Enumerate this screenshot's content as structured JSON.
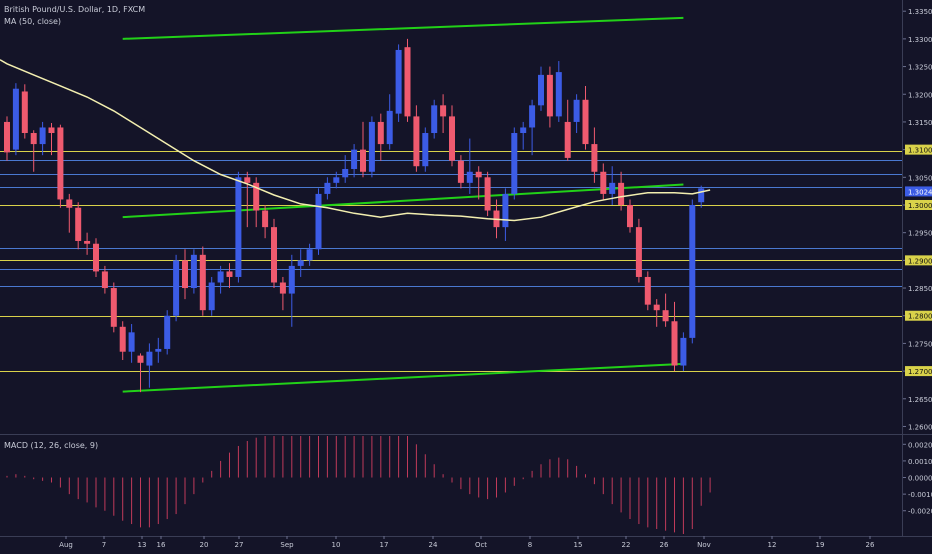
{
  "symbol_title": "British Pound/U.S. Dollar, 1D, FXCM",
  "ma_label": "MA (50, close)",
  "macd_label": "MACD (12, 26, close, 9)",
  "colors": {
    "background": "#141428",
    "bull": "#3c5ce6",
    "bear": "#ef5a6f",
    "ma": "#f3efb0",
    "trendline": "#22d118",
    "level": "#d9d24a",
    "blue_level": "#4a78d0",
    "macd_hist": "#c03a5a",
    "text": "#c9ccd8"
  },
  "chart_data": [
    {
      "type": "candlestick",
      "title": "British Pound/U.S. Dollar, 1D, FXCM",
      "x_tick_labels": [
        "Aug",
        "7",
        "13",
        "16",
        "20",
        "27",
        "Sep",
        "10",
        "17",
        "24",
        "Oct",
        "8",
        "15",
        "22",
        "26",
        "Nov",
        "12",
        "19",
        "26"
      ],
      "y_tick_labels": [
        "1.33500",
        "1.33000",
        "1.32500",
        "1.32000",
        "1.31500",
        "1.31000",
        "1.30500",
        "1.30000",
        "1.29500",
        "1.29000",
        "1.28500",
        "1.28000",
        "1.27500",
        "1.27000",
        "1.26500",
        "1.26000"
      ],
      "ylim": [
        1.259,
        1.3363
      ],
      "grid": false,
      "scale_badges": [
        "1.31000",
        "1.30000",
        "1.29000",
        "1.28000",
        "1.27000"
      ],
      "current_price_badge": "1.30245",
      "horizontal_levels": [
        {
          "value": 1.3098,
          "style": "yellow"
        },
        {
          "value": 1.3082,
          "style": "blue"
        },
        {
          "value": 1.3056,
          "style": "blue"
        },
        {
          "value": 1.3032,
          "style": "blue"
        },
        {
          "value": 1.3,
          "style": "yellow"
        },
        {
          "value": 1.2922,
          "style": "blue"
        },
        {
          "value": 1.29,
          "style": "yellow"
        },
        {
          "value": 1.2885,
          "style": "blue"
        },
        {
          "value": 1.2853,
          "style": "blue"
        },
        {
          "value": 1.28,
          "style": "yellow"
        },
        {
          "value": 1.27,
          "style": "yellow"
        }
      ],
      "trendlines": [
        {
          "from": [
            13,
            1.33
          ],
          "to": [
            76,
            1.3338
          ]
        },
        {
          "from": [
            13,
            1.2978
          ],
          "to": [
            76,
            1.3037
          ]
        },
        {
          "from": [
            13,
            1.2663
          ],
          "to": [
            76,
            1.2713
          ]
        }
      ],
      "candles": [
        {
          "o": 1.315,
          "h": 1.316,
          "l": 1.308,
          "c": 1.3095
        },
        {
          "o": 1.31,
          "h": 1.322,
          "l": 1.309,
          "c": 1.321
        },
        {
          "o": 1.3205,
          "h": 1.3218,
          "l": 1.312,
          "c": 1.313
        },
        {
          "o": 1.313,
          "h": 1.3135,
          "l": 1.306,
          "c": 1.311
        },
        {
          "o": 1.311,
          "h": 1.315,
          "l": 1.309,
          "c": 1.314
        },
        {
          "o": 1.314,
          "h": 1.3148,
          "l": 1.309,
          "c": 1.313
        },
        {
          "o": 1.314,
          "h": 1.3145,
          "l": 1.2995,
          "c": 1.301
        },
        {
          "o": 1.301,
          "h": 1.302,
          "l": 1.295,
          "c": 1.2995
        },
        {
          "o": 1.2995,
          "h": 1.3005,
          "l": 1.292,
          "c": 1.2935
        },
        {
          "o": 1.2935,
          "h": 1.295,
          "l": 1.291,
          "c": 1.293
        },
        {
          "o": 1.293,
          "h": 1.294,
          "l": 1.287,
          "c": 1.288
        },
        {
          "o": 1.288,
          "h": 1.289,
          "l": 1.284,
          "c": 1.285
        },
        {
          "o": 1.285,
          "h": 1.286,
          "l": 1.277,
          "c": 1.278
        },
        {
          "o": 1.278,
          "h": 1.279,
          "l": 1.272,
          "c": 1.2735
        },
        {
          "o": 1.2735,
          "h": 1.2785,
          "l": 1.2715,
          "c": 1.277
        },
        {
          "o": 1.2728,
          "h": 1.2732,
          "l": 1.2662,
          "c": 1.2715
        },
        {
          "o": 1.271,
          "h": 1.275,
          "l": 1.267,
          "c": 1.2735
        },
        {
          "o": 1.2735,
          "h": 1.276,
          "l": 1.2715,
          "c": 1.274
        },
        {
          "o": 1.274,
          "h": 1.281,
          "l": 1.273,
          "c": 1.28
        },
        {
          "o": 1.28,
          "h": 1.291,
          "l": 1.279,
          "c": 1.29
        },
        {
          "o": 1.29,
          "h": 1.292,
          "l": 1.283,
          "c": 1.285
        },
        {
          "o": 1.285,
          "h": 1.292,
          "l": 1.284,
          "c": 1.291
        },
        {
          "o": 1.291,
          "h": 1.2925,
          "l": 1.28,
          "c": 1.281
        },
        {
          "o": 1.281,
          "h": 1.287,
          "l": 1.28,
          "c": 1.286
        },
        {
          "o": 1.286,
          "h": 1.289,
          "l": 1.284,
          "c": 1.288
        },
        {
          "o": 1.288,
          "h": 1.2895,
          "l": 1.285,
          "c": 1.287
        },
        {
          "o": 1.287,
          "h": 1.306,
          "l": 1.286,
          "c": 1.305
        },
        {
          "o": 1.305,
          "h": 1.306,
          "l": 1.296,
          "c": 1.304
        },
        {
          "o": 1.304,
          "h": 1.305,
          "l": 1.296,
          "c": 1.299
        },
        {
          "o": 1.299,
          "h": 1.3,
          "l": 1.294,
          "c": 1.296
        },
        {
          "o": 1.296,
          "h": 1.2975,
          "l": 1.285,
          "c": 1.286
        },
        {
          "o": 1.286,
          "h": 1.287,
          "l": 1.281,
          "c": 1.284
        },
        {
          "o": 1.284,
          "h": 1.291,
          "l": 1.278,
          "c": 1.289
        },
        {
          "o": 1.289,
          "h": 1.292,
          "l": 1.287,
          "c": 1.29
        },
        {
          "o": 1.29,
          "h": 1.293,
          "l": 1.289,
          "c": 1.292
        },
        {
          "o": 1.292,
          "h": 1.303,
          "l": 1.291,
          "c": 1.302
        },
        {
          "o": 1.302,
          "h": 1.305,
          "l": 1.301,
          "c": 1.304
        },
        {
          "o": 1.304,
          "h": 1.306,
          "l": 1.303,
          "c": 1.305
        },
        {
          "o": 1.305,
          "h": 1.309,
          "l": 1.304,
          "c": 1.3065
        },
        {
          "o": 1.3065,
          "h": 1.311,
          "l": 1.305,
          "c": 1.31
        },
        {
          "o": 1.31,
          "h": 1.315,
          "l": 1.305,
          "c": 1.306
        },
        {
          "o": 1.306,
          "h": 1.316,
          "l": 1.305,
          "c": 1.315
        },
        {
          "o": 1.315,
          "h": 1.3165,
          "l": 1.308,
          "c": 1.311
        },
        {
          "o": 1.311,
          "h": 1.32,
          "l": 1.31,
          "c": 1.317
        },
        {
          "o": 1.3165,
          "h": 1.329,
          "l": 1.315,
          "c": 1.328
        },
        {
          "o": 1.3285,
          "h": 1.33,
          "l": 1.315,
          "c": 1.316
        },
        {
          "o": 1.316,
          "h": 1.318,
          "l": 1.306,
          "c": 1.307
        },
        {
          "o": 1.307,
          "h": 1.314,
          "l": 1.306,
          "c": 1.313
        },
        {
          "o": 1.313,
          "h": 1.319,
          "l": 1.312,
          "c": 1.318
        },
        {
          "o": 1.318,
          "h": 1.32,
          "l": 1.313,
          "c": 1.316
        },
        {
          "o": 1.316,
          "h": 1.318,
          "l": 1.307,
          "c": 1.308
        },
        {
          "o": 1.308,
          "h": 1.309,
          "l": 1.303,
          "c": 1.304
        },
        {
          "o": 1.304,
          "h": 1.312,
          "l": 1.302,
          "c": 1.306
        },
        {
          "o": 1.306,
          "h": 1.307,
          "l": 1.301,
          "c": 1.305
        },
        {
          "o": 1.305,
          "h": 1.306,
          "l": 1.298,
          "c": 1.299
        },
        {
          "o": 1.299,
          "h": 1.301,
          "l": 1.294,
          "c": 1.296
        },
        {
          "o": 1.296,
          "h": 1.303,
          "l": 1.2935,
          "c": 1.302
        },
        {
          "o": 1.302,
          "h": 1.314,
          "l": 1.301,
          "c": 1.313
        },
        {
          "o": 1.313,
          "h": 1.315,
          "l": 1.31,
          "c": 1.314
        },
        {
          "o": 1.314,
          "h": 1.319,
          "l": 1.309,
          "c": 1.318
        },
        {
          "o": 1.318,
          "h": 1.325,
          "l": 1.317,
          "c": 1.3235
        },
        {
          "o": 1.3235,
          "h": 1.325,
          "l": 1.314,
          "c": 1.316
        },
        {
          "o": 1.316,
          "h": 1.326,
          "l": 1.315,
          "c": 1.324
        },
        {
          "o": 1.315,
          "h": 1.319,
          "l": 1.308,
          "c": 1.3085
        },
        {
          "o": 1.315,
          "h": 1.32,
          "l": 1.313,
          "c": 1.319
        },
        {
          "o": 1.319,
          "h": 1.3215,
          "l": 1.31,
          "c": 1.311
        },
        {
          "o": 1.311,
          "h": 1.314,
          "l": 1.304,
          "c": 1.306
        },
        {
          "o": 1.306,
          "h": 1.3075,
          "l": 1.301,
          "c": 1.302
        },
        {
          "o": 1.302,
          "h": 1.307,
          "l": 1.3,
          "c": 1.304
        },
        {
          "o": 1.304,
          "h": 1.306,
          "l": 1.299,
          "c": 1.3
        },
        {
          "o": 1.3,
          "h": 1.301,
          "l": 1.295,
          "c": 1.296
        },
        {
          "o": 1.296,
          "h": 1.2975,
          "l": 1.286,
          "c": 1.287
        },
        {
          "o": 1.287,
          "h": 1.288,
          "l": 1.281,
          "c": 1.282
        },
        {
          "o": 1.282,
          "h": 1.283,
          "l": 1.278,
          "c": 1.281
        },
        {
          "o": 1.281,
          "h": 1.284,
          "l": 1.278,
          "c": 1.279
        },
        {
          "o": 1.279,
          "h": 1.2825,
          "l": 1.27,
          "c": 1.271
        },
        {
          "o": 1.271,
          "h": 1.277,
          "l": 1.27,
          "c": 1.276
        },
        {
          "o": 1.276,
          "h": 1.301,
          "l": 1.275,
          "c": 1.3
        },
        {
          "o": 1.3005,
          "h": 1.3035,
          "l": 1.2995,
          "c": 1.303
        }
      ],
      "moving_average": {
        "name": "MA (50, close)",
        "points": [
          [
            0,
            1.3255
          ],
          [
            3,
            1.3235
          ],
          [
            6,
            1.3215
          ],
          [
            9,
            1.3195
          ],
          [
            12,
            1.317
          ],
          [
            15,
            1.314
          ],
          [
            18,
            1.311
          ],
          [
            21,
            1.308
          ],
          [
            24,
            1.3055
          ],
          [
            27,
            1.3038
          ],
          [
            30,
            1.3018
          ],
          [
            33,
            1.3002
          ],
          [
            36,
            1.2995
          ],
          [
            39,
            1.2985
          ],
          [
            42,
            1.2978
          ],
          [
            45,
            1.2985
          ],
          [
            48,
            1.2982
          ],
          [
            51,
            1.298
          ],
          [
            54,
            1.2975
          ],
          [
            57,
            1.2972
          ],
          [
            60,
            1.2978
          ],
          [
            63,
            1.2992
          ],
          [
            66,
            1.3006
          ],
          [
            69,
            1.3015
          ],
          [
            72,
            1.3022
          ],
          [
            75,
            1.3022
          ],
          [
            77,
            1.302
          ],
          [
            79,
            1.3027
          ]
        ]
      }
    },
    {
      "type": "bar",
      "title": "MACD (12, 26, close, 9)",
      "y_tick_labels": [
        "0.0020",
        "0.0010",
        "0.0000",
        "-0.0010",
        "-0.0020"
      ],
      "ylim": [
        -0.0034,
        0.0025
      ],
      "values": [
        0.0001,
        0.0002,
        0.0001,
        -0.0001,
        -0.0002,
        -0.0003,
        -0.0006,
        -0.001,
        -0.0013,
        -0.0015,
        -0.0018,
        -0.002,
        -0.0023,
        -0.0026,
        -0.0028,
        -0.003,
        -0.003,
        -0.0028,
        -0.0025,
        -0.0022,
        -0.0016,
        -0.001,
        -0.0003,
        0.0004,
        0.001,
        0.0015,
        0.0019,
        0.0022,
        0.0024,
        0.0025,
        0.0025,
        0.0025,
        0.0025,
        0.0025,
        0.0025,
        0.0025,
        0.0025,
        0.0025,
        0.0025,
        0.0025,
        0.0025,
        0.0025,
        0.0025,
        0.0025,
        0.0025,
        0.0025,
        0.002,
        0.0014,
        0.0008,
        0.0002,
        -0.0003,
        -0.0007,
        -0.001,
        -0.0012,
        -0.0013,
        -0.0012,
        -0.0009,
        -0.0005,
        -0.0001,
        0.0004,
        0.0008,
        0.0011,
        0.0012,
        0.0011,
        0.0007,
        0.0002,
        -0.0004,
        -0.001,
        -0.0016,
        -0.0021,
        -0.0025,
        -0.0028,
        -0.003,
        -0.0031,
        -0.0032,
        -0.0033,
        -0.0034,
        -0.0031,
        -0.0017,
        -0.0009
      ]
    }
  ]
}
